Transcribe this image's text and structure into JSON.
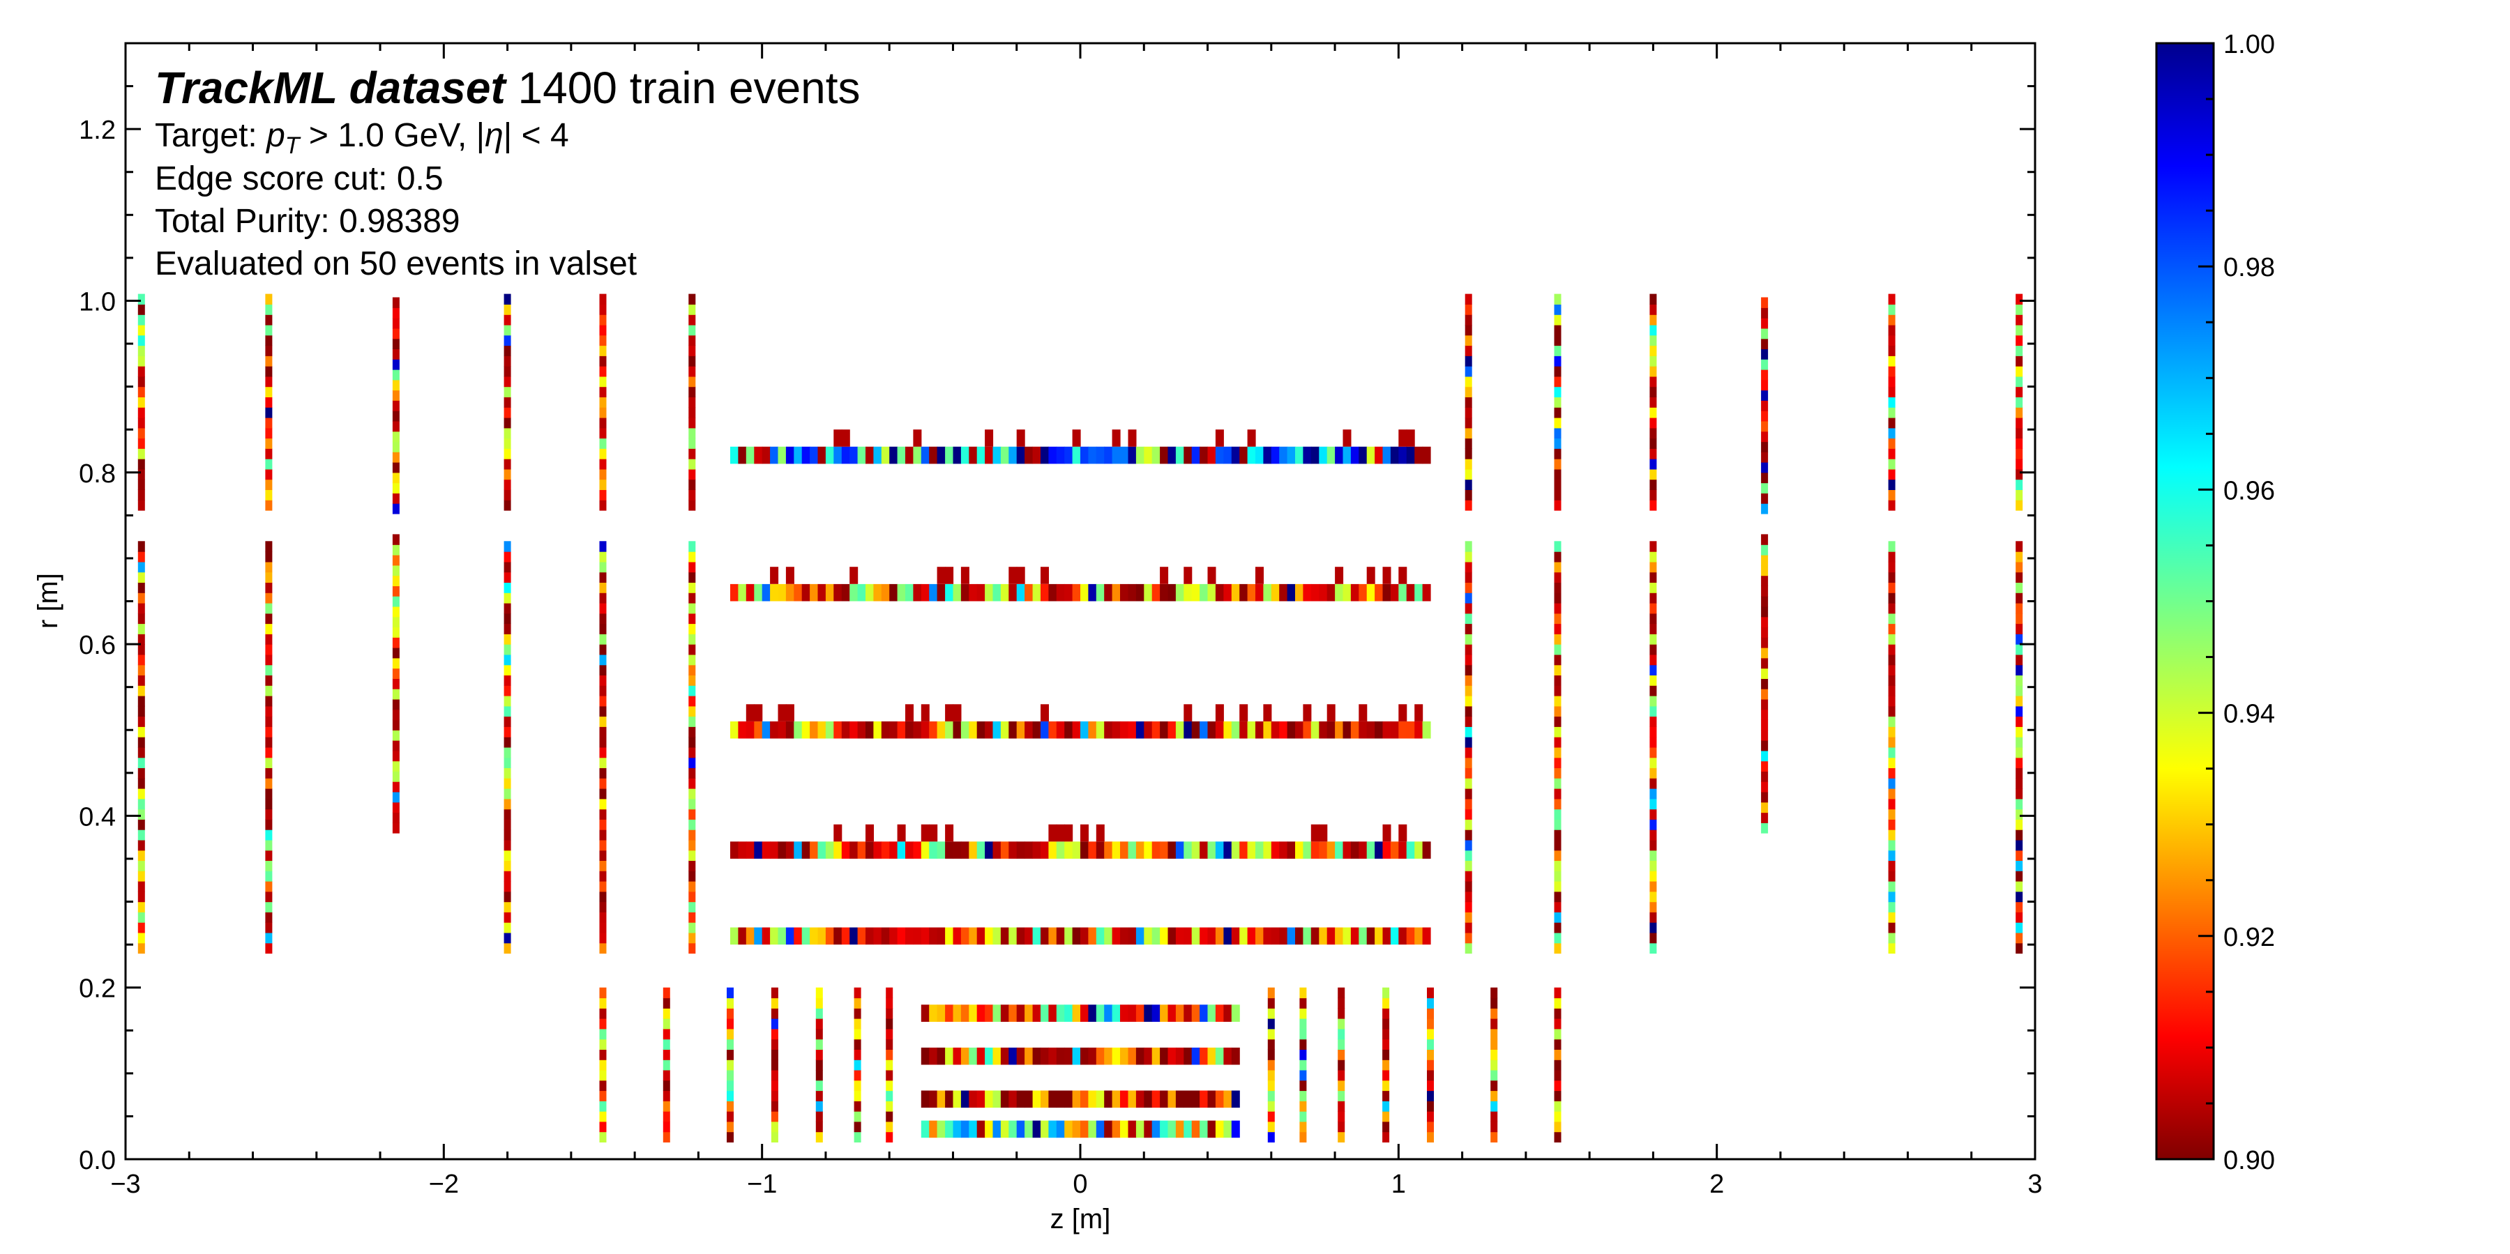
{
  "chart_data": {
    "type": "heatmap",
    "title_bold": "TrackML dataset",
    "title_rest": " 1400 train events",
    "annotations": {
      "target_prefix": "Target: ",
      "target_pt": "p",
      "target_pt_sub": "T",
      "target_mid": " > 1.0 GeV, |",
      "target_eta": "η",
      "target_suffix": "| < 4",
      "edge_cut": "Edge score cut: 0.5",
      "purity": "Total Purity:  0.98389",
      "evaluated": "Evaluated on 50 events in valset"
    },
    "xlabel": "z [m]",
    "ylabel": "r [m]",
    "xlim": [
      -3,
      3
    ],
    "ylim": [
      0,
      1.3
    ],
    "xticks": [
      -3,
      -2,
      -1,
      0,
      1,
      2,
      3
    ],
    "xtick_labels": [
      "−3",
      "−2",
      "−1",
      "0",
      "1",
      "2",
      "3"
    ],
    "yticks": [
      0.0,
      0.2,
      0.4,
      0.6,
      0.8,
      1.0,
      1.2
    ],
    "ytick_labels": [
      "0.0",
      "0.2",
      "0.4",
      "0.6",
      "0.8",
      "1.0",
      "1.2"
    ],
    "colorbar": {
      "range": [
        0.9,
        1.0
      ],
      "ticks": [
        0.9,
        0.92,
        0.94,
        0.96,
        0.98,
        1.0
      ],
      "tick_labels": [
        "0.90",
        "0.92",
        "0.94",
        "0.96",
        "0.98",
        "1.00"
      ],
      "colormap": "jet"
    },
    "barrel_layers": [
      {
        "r": 0.82,
        "z": [
          -1.1,
          1.1
        ],
        "mean": 0.93
      },
      {
        "r": 0.66,
        "z": [
          -1.1,
          1.1
        ],
        "mean": 0.975
      },
      {
        "r": 0.5,
        "z": [
          -1.1,
          1.1
        ],
        "mean": 0.98
      },
      {
        "r": 0.36,
        "z": [
          -1.1,
          1.1
        ],
        "mean": 0.965
      },
      {
        "r": 0.26,
        "z": [
          -1.1,
          1.1
        ],
        "mean": 0.97
      },
      {
        "r": 0.17,
        "z": [
          -0.5,
          0.5
        ],
        "mean": 0.97
      },
      {
        "r": 0.12,
        "z": [
          -0.5,
          0.5
        ],
        "mean": 0.975
      },
      {
        "r": 0.07,
        "z": [
          -0.5,
          0.5
        ],
        "mean": 0.985
      },
      {
        "r": 0.035,
        "z": [
          -0.5,
          0.5
        ],
        "mean": 0.95
      }
    ],
    "endcap_disks": [
      {
        "z": -2.95,
        "r": [
          0.24,
          1.0
        ]
      },
      {
        "z": -2.55,
        "r": [
          0.24,
          1.0
        ]
      },
      {
        "z": -2.15,
        "r": [
          0.38,
          1.0
        ]
      },
      {
        "z": -1.8,
        "r": [
          0.24,
          1.0
        ]
      },
      {
        "z": -1.5,
        "r": [
          0.24,
          1.0
        ]
      },
      {
        "z": -1.22,
        "r": [
          0.24,
          1.0
        ]
      },
      {
        "z": 1.22,
        "r": [
          0.24,
          1.0
        ]
      },
      {
        "z": 1.5,
        "r": [
          0.24,
          1.0
        ]
      },
      {
        "z": 1.8,
        "r": [
          0.24,
          1.0
        ]
      },
      {
        "z": 2.15,
        "r": [
          0.38,
          1.0
        ]
      },
      {
        "z": 2.55,
        "r": [
          0.24,
          1.0
        ]
      },
      {
        "z": 2.95,
        "r": [
          0.24,
          1.0
        ]
      },
      {
        "z": -1.5,
        "r": [
          0.02,
          0.19
        ]
      },
      {
        "z": -1.3,
        "r": [
          0.02,
          0.19
        ]
      },
      {
        "z": -1.1,
        "r": [
          0.02,
          0.19
        ]
      },
      {
        "z": -0.96,
        "r": [
          0.02,
          0.19
        ]
      },
      {
        "z": -0.82,
        "r": [
          0.02,
          0.19
        ]
      },
      {
        "z": -0.7,
        "r": [
          0.02,
          0.19
        ]
      },
      {
        "z": -0.6,
        "r": [
          0.02,
          0.19
        ]
      },
      {
        "z": 0.6,
        "r": [
          0.02,
          0.19
        ]
      },
      {
        "z": 0.7,
        "r": [
          0.02,
          0.19
        ]
      },
      {
        "z": 0.82,
        "r": [
          0.02,
          0.19
        ]
      },
      {
        "z": 0.96,
        "r": [
          0.02,
          0.19
        ]
      },
      {
        "z": 1.1,
        "r": [
          0.02,
          0.19
        ]
      },
      {
        "z": 1.3,
        "r": [
          0.02,
          0.19
        ]
      },
      {
        "z": 1.5,
        "r": [
          0.02,
          0.19
        ]
      }
    ]
  }
}
